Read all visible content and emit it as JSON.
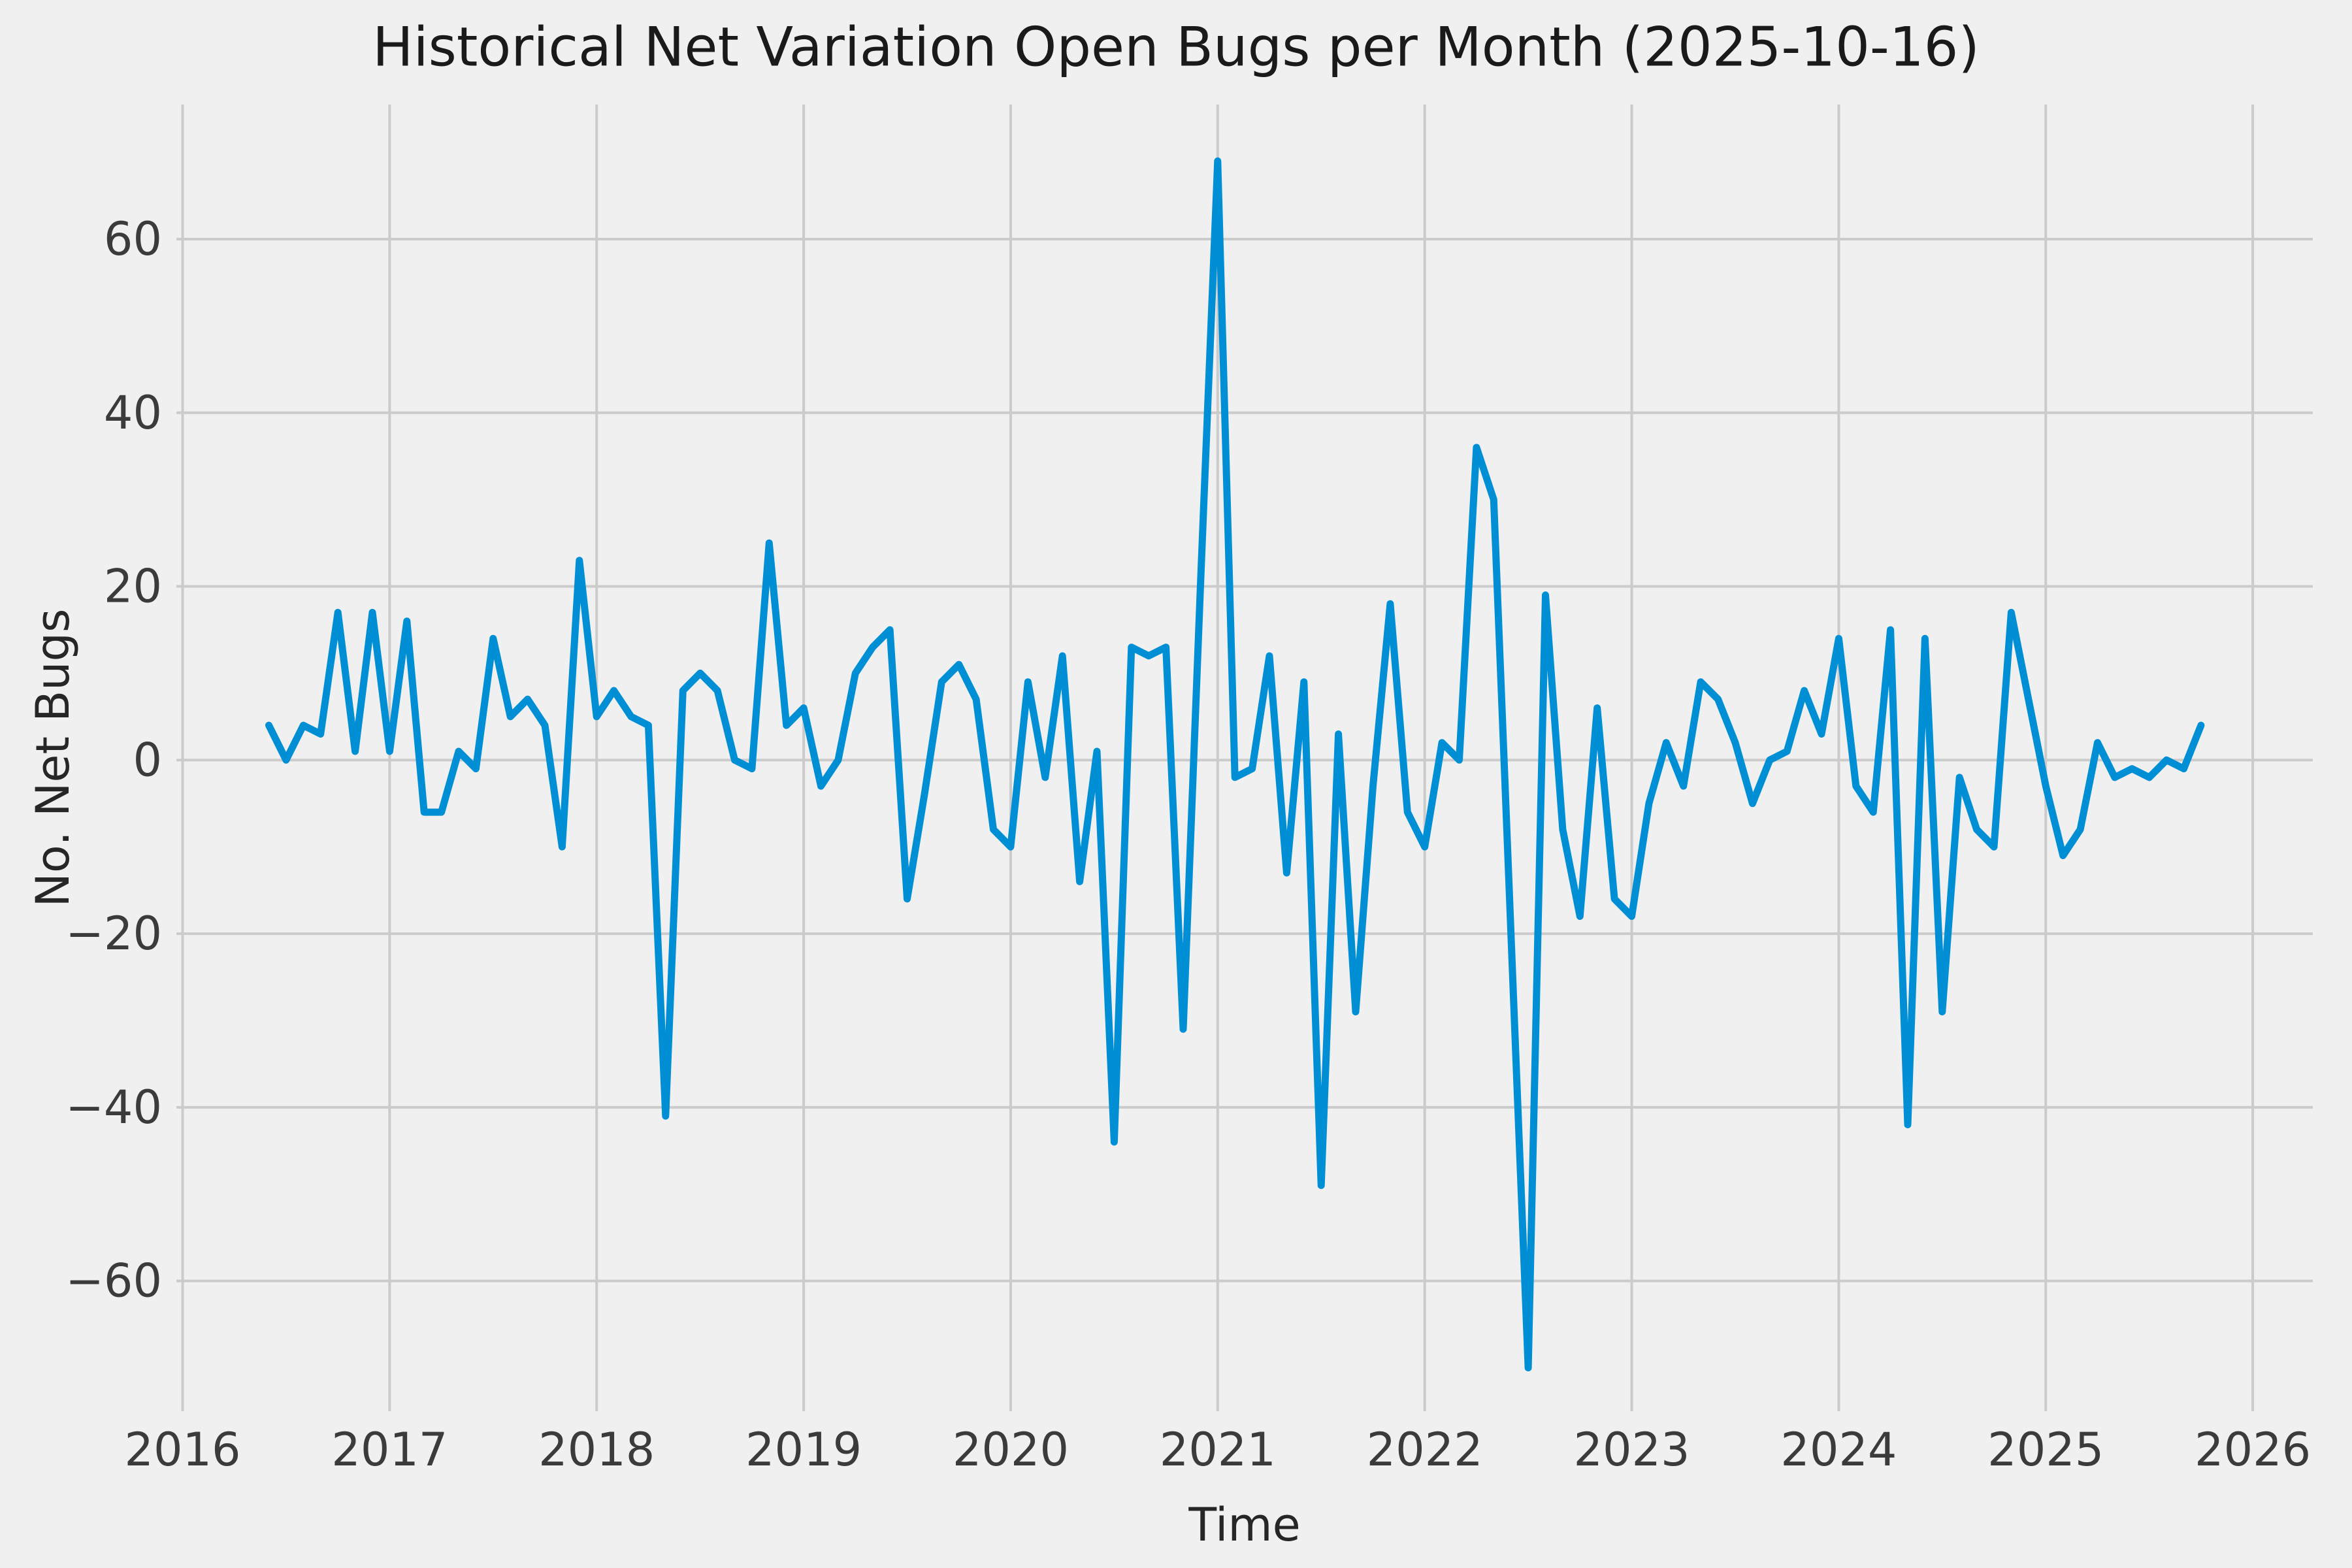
{
  "chart_data": {
    "type": "line",
    "title": "Historical Net Variation Open Bugs per Month (2025-10-16)",
    "xlabel": "Time",
    "ylabel": "No. Net Bugs",
    "as_of_date": "2025-10-16",
    "x_ticks": [
      2016,
      2017,
      2018,
      2019,
      2020,
      2021,
      2022,
      2023,
      2024,
      2025,
      2026
    ],
    "y_ticks": [
      -60,
      -40,
      -20,
      0,
      20,
      40,
      60
    ],
    "xlim": [
      2015.97,
      2026.29
    ],
    "ylim": [
      -75,
      75.5
    ],
    "grid": true,
    "legend": false,
    "style": {
      "background_color": "#f0f0f0",
      "grid_color": "#cbcbcb",
      "line_color": "#008FD5",
      "line_width": 11
    },
    "series": [
      {
        "name": "net-open-bugs-per-month",
        "start_month": "2016-06",
        "end_month": "2025-10",
        "cadence": "monthly",
        "values": [
          4,
          0,
          4,
          3,
          17,
          1,
          17,
          1,
          16,
          -6,
          -6,
          1,
          -1,
          14,
          5,
          7,
          4,
          -10,
          23,
          5,
          8,
          5,
          4,
          -41,
          8,
          10,
          8,
          0,
          -1,
          25,
          4,
          6,
          -3,
          0,
          10,
          13,
          15,
          -16,
          -4,
          9,
          11,
          7,
          -8,
          -10,
          9,
          -2,
          12,
          -14,
          1,
          -44,
          13,
          12,
          13,
          -31,
          20,
          69,
          -2,
          -1,
          12,
          -13,
          9,
          -49,
          3,
          -29,
          -3,
          18,
          -6,
          -10,
          2,
          0,
          36,
          30,
          -20,
          -70,
          19,
          -8,
          -18,
          6,
          -16,
          -18,
          -5,
          2,
          -3,
          9,
          7,
          2,
          -5,
          0,
          1,
          8,
          3,
          14,
          -3,
          -6,
          15,
          -42,
          14,
          -29,
          -2,
          -8,
          -10,
          17,
          7,
          -3,
          -11,
          -8,
          2,
          -2,
          -1,
          -2,
          0,
          -1,
          4
        ]
      }
    ]
  }
}
